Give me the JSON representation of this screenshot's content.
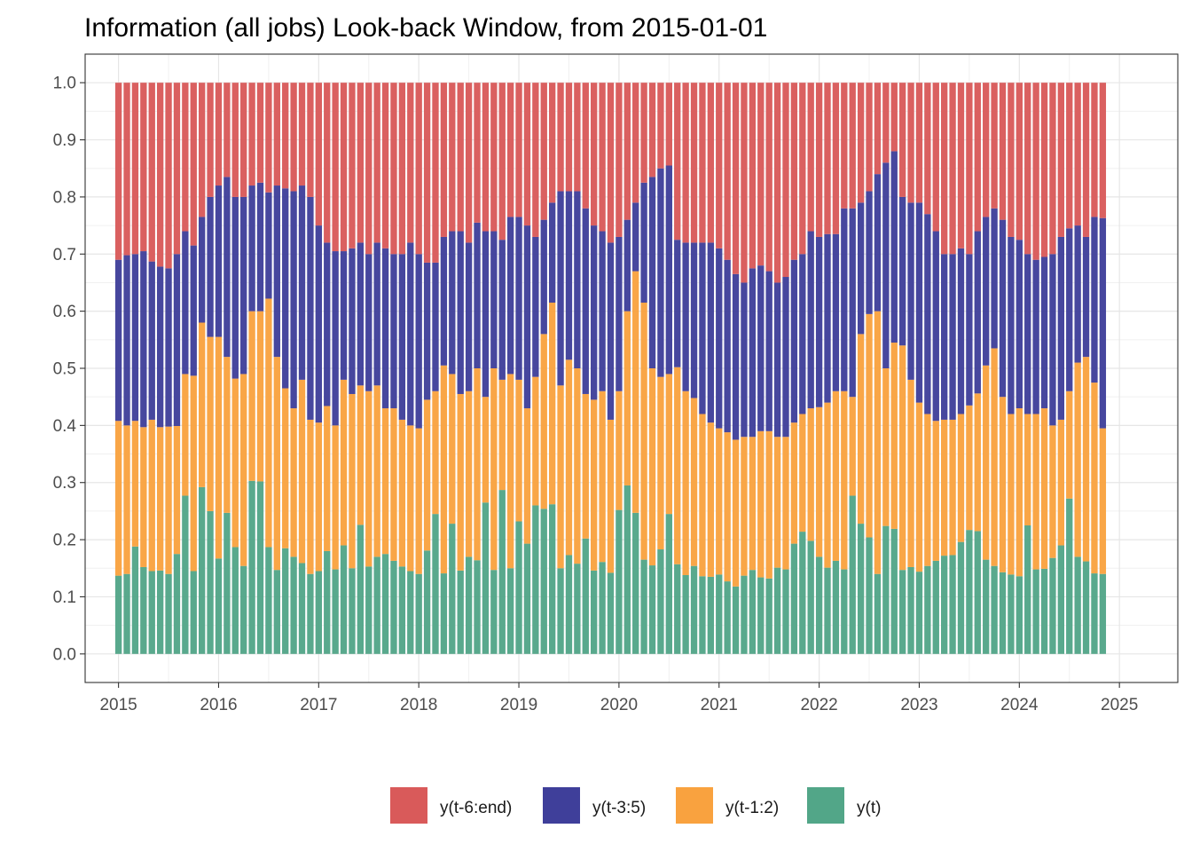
{
  "chart_data": {
    "type": "bar",
    "stacked": true,
    "title": "Information (all jobs) Look-back Window, from 2015-01-01",
    "xlabel": "",
    "ylabel": "",
    "x_start": "2015-01",
    "x_end": "2025-04",
    "x_unit": "month",
    "xlim": [
      "2014-09",
      "2025-08"
    ],
    "ylim": [
      -0.05,
      1.05
    ],
    "x_ticks": [
      "2015",
      "2016",
      "2017",
      "2018",
      "2019",
      "2020",
      "2021",
      "2022",
      "2023",
      "2024",
      "2025"
    ],
    "y_ticks": [
      "0.0",
      "0.1",
      "0.2",
      "0.3",
      "0.4",
      "0.5",
      "0.6",
      "0.7",
      "0.8",
      "0.9",
      "1.0"
    ],
    "grid": true,
    "legend_position": "bottom",
    "series": [
      {
        "name": "y(t)",
        "color": "#52a688",
        "cum_top": [
          0.137,
          0.14,
          0.188,
          0.152,
          0.145,
          0.146,
          0.14,
          0.175,
          0.277,
          0.145,
          0.292,
          0.25,
          0.167,
          0.247,
          0.187,
          0.154,
          0.303,
          0.302,
          0.187,
          0.147,
          0.185,
          0.17,
          0.159,
          0.14,
          0.145,
          0.18,
          0.148,
          0.19,
          0.15,
          0.226,
          0.153,
          0.17,
          0.175,
          0.163,
          0.153,
          0.145,
          0.14,
          0.181,
          0.245,
          0.141,
          0.228,
          0.146,
          0.17,
          0.164,
          0.265,
          0.147,
          0.287,
          0.15,
          0.232,
          0.193,
          0.26,
          0.254,
          0.262,
          0.15,
          0.173,
          0.158,
          0.202,
          0.146,
          0.161,
          0.142,
          0.252,
          0.295,
          0.247,
          0.165,
          0.155,
          0.183,
          0.245,
          0.157,
          0.138,
          0.154,
          0.136,
          0.135,
          0.139,
          0.127,
          0.118,
          0.137,
          0.147,
          0.134,
          0.132,
          0.151,
          0.148,
          0.193,
          0.214,
          0.198,
          0.17,
          0.151,
          0.163,
          0.148,
          0.277,
          0.228,
          0.204,
          0.14,
          0.224,
          0.219,
          0.147,
          0.152,
          0.144,
          0.154,
          0.163,
          0.172,
          0.173,
          0.196,
          0.217,
          0.215,
          0.165,
          0.154,
          0.143,
          0.139,
          0.136,
          0.225,
          0.148,
          0.149,
          0.168,
          0.19,
          0.272,
          0.17,
          0.162,
          0.141,
          0.14
        ],
        "values": [
          0.137,
          0.14,
          0.188,
          0.152,
          0.145,
          0.146,
          0.14,
          0.175,
          0.277,
          0.145,
          0.292,
          0.25,
          0.167,
          0.247,
          0.187,
          0.154,
          0.303,
          0.302,
          0.187,
          0.147,
          0.185,
          0.17,
          0.159,
          0.14,
          0.145,
          0.18,
          0.148,
          0.19,
          0.15,
          0.226,
          0.153,
          0.17,
          0.175,
          0.163,
          0.153,
          0.145,
          0.14,
          0.181,
          0.245,
          0.141,
          0.228,
          0.146,
          0.17,
          0.164,
          0.265,
          0.147,
          0.287,
          0.15,
          0.232,
          0.193,
          0.26,
          0.254,
          0.262,
          0.15,
          0.173,
          0.158,
          0.202,
          0.146,
          0.161,
          0.142,
          0.252,
          0.295,
          0.247,
          0.165,
          0.155,
          0.183,
          0.245,
          0.157,
          0.138,
          0.154,
          0.136,
          0.135,
          0.139,
          0.127,
          0.118,
          0.137,
          0.147,
          0.134,
          0.132,
          0.151,
          0.148,
          0.193,
          0.214,
          0.198,
          0.17,
          0.151,
          0.163,
          0.148,
          0.277,
          0.228,
          0.204,
          0.14,
          0.224,
          0.219,
          0.147,
          0.152,
          0.144,
          0.154,
          0.163,
          0.172,
          0.173,
          0.196,
          0.217,
          0.215,
          0.165,
          0.154,
          0.143,
          0.139,
          0.136,
          0.225,
          0.148,
          0.149,
          0.168,
          0.19,
          0.272,
          0.17,
          0.162,
          0.141,
          0.14
        ]
      },
      {
        "name": "y(t-1:2)",
        "color": "#f9a23f",
        "cum_top": [
          0.408,
          0.4,
          0.408,
          0.397,
          0.41,
          0.397,
          0.398,
          0.399,
          0.49,
          0.487,
          0.58,
          0.555,
          0.555,
          0.52,
          0.482,
          0.49,
          0.6,
          0.6,
          0.622,
          0.52,
          0.465,
          0.43,
          0.48,
          0.41,
          0.405,
          0.434,
          0.4,
          0.48,
          0.455,
          0.47,
          0.46,
          0.47,
          0.43,
          0.43,
          0.41,
          0.4,
          0.395,
          0.445,
          0.46,
          0.505,
          0.49,
          0.455,
          0.46,
          0.5,
          0.45,
          0.5,
          0.48,
          0.49,
          0.48,
          0.43,
          0.485,
          0.56,
          0.615,
          0.47,
          0.515,
          0.5,
          0.455,
          0.445,
          0.46,
          0.41,
          0.46,
          0.6,
          0.67,
          0.615,
          0.5,
          0.485,
          0.49,
          0.502,
          0.46,
          0.448,
          0.42,
          0.405,
          0.395,
          0.388,
          0.375,
          0.38,
          0.38,
          0.39,
          0.39,
          0.38,
          0.38,
          0.405,
          0.42,
          0.43,
          0.432,
          0.44,
          0.46,
          0.46,
          0.45,
          0.56,
          0.595,
          0.6,
          0.5,
          0.545,
          0.54,
          0.48,
          0.44,
          0.42,
          0.408,
          0.41,
          0.41,
          0.42,
          0.435,
          0.456,
          0.505,
          0.535,
          0.45,
          0.42,
          0.43,
          0.42,
          0.42,
          0.43,
          0.4,
          0.41,
          0.46,
          0.51,
          0.52,
          0.475,
          0.395
        ],
        "values": [
          0.271,
          0.26,
          0.22,
          0.245,
          0.265,
          0.251,
          0.258,
          0.224,
          0.213,
          0.342,
          0.288,
          0.305,
          0.388,
          0.273,
          0.295,
          0.336,
          0.297,
          0.298,
          0.435,
          0.373,
          0.28,
          0.26,
          0.321,
          0.27,
          0.26,
          0.254,
          0.252,
          0.29,
          0.305,
          0.244,
          0.307,
          0.3,
          0.255,
          0.267,
          0.257,
          0.255,
          0.255,
          0.264,
          0.215,
          0.364,
          0.262,
          0.309,
          0.29,
          0.336,
          0.185,
          0.353,
          0.193,
          0.34,
          0.248,
          0.237,
          0.225,
          0.306,
          0.353,
          0.32,
          0.342,
          0.342,
          0.253,
          0.299,
          0.299,
          0.268,
          0.208,
          0.305,
          0.423,
          0.45,
          0.345,
          0.302,
          0.245,
          0.345,
          0.322,
          0.294,
          0.284,
          0.27,
          0.256,
          0.261,
          0.257,
          0.243,
          0.233,
          0.256,
          0.258,
          0.229,
          0.232,
          0.212,
          0.206,
          0.232,
          0.262,
          0.289,
          0.297,
          0.312,
          0.173,
          0.332,
          0.391,
          0.46,
          0.276,
          0.326,
          0.393,
          0.328,
          0.296,
          0.266,
          0.245,
          0.238,
          0.237,
          0.224,
          0.218,
          0.241,
          0.34,
          0.381,
          0.307,
          0.281,
          0.294,
          0.195,
          0.272,
          0.281,
          0.232,
          0.22,
          0.188,
          0.34,
          0.358,
          0.334,
          0.255
        ]
      },
      {
        "name": "y(t-3:5)",
        "color": "#3f3f9a",
        "cum_top": [
          0.69,
          0.698,
          0.7,
          0.705,
          0.687,
          0.678,
          0.675,
          0.7,
          0.74,
          0.715,
          0.765,
          0.8,
          0.82,
          0.835,
          0.8,
          0.8,
          0.82,
          0.825,
          0.808,
          0.82,
          0.815,
          0.81,
          0.82,
          0.8,
          0.75,
          0.72,
          0.705,
          0.705,
          0.71,
          0.72,
          0.7,
          0.72,
          0.71,
          0.7,
          0.7,
          0.72,
          0.7,
          0.685,
          0.685,
          0.73,
          0.74,
          0.74,
          0.72,
          0.755,
          0.74,
          0.74,
          0.725,
          0.765,
          0.765,
          0.75,
          0.73,
          0.76,
          0.79,
          0.81,
          0.81,
          0.81,
          0.78,
          0.75,
          0.74,
          0.72,
          0.73,
          0.76,
          0.79,
          0.825,
          0.835,
          0.85,
          0.855,
          0.725,
          0.72,
          0.72,
          0.72,
          0.72,
          0.71,
          0.69,
          0.665,
          0.65,
          0.675,
          0.68,
          0.67,
          0.65,
          0.66,
          0.69,
          0.7,
          0.74,
          0.73,
          0.735,
          0.735,
          0.78,
          0.78,
          0.79,
          0.81,
          0.84,
          0.86,
          0.88,
          0.8,
          0.79,
          0.79,
          0.77,
          0.74,
          0.7,
          0.7,
          0.71,
          0.7,
          0.74,
          0.765,
          0.78,
          0.76,
          0.73,
          0.725,
          0.7,
          0.69,
          0.695,
          0.7,
          0.73,
          0.745,
          0.75,
          0.73,
          0.765,
          0.763
        ],
        "values": [
          0.282,
          0.298,
          0.292,
          0.308,
          0.277,
          0.281,
          0.277,
          0.301,
          0.25,
          0.228,
          0.185,
          0.245,
          0.265,
          0.315,
          0.318,
          0.31,
          0.22,
          0.225,
          0.186,
          0.3,
          0.35,
          0.38,
          0.34,
          0.39,
          0.345,
          0.286,
          0.305,
          0.225,
          0.255,
          0.25,
          0.24,
          0.25,
          0.28,
          0.27,
          0.29,
          0.32,
          0.305,
          0.24,
          0.225,
          0.225,
          0.25,
          0.285,
          0.26,
          0.255,
          0.29,
          0.24,
          0.245,
          0.275,
          0.285,
          0.32,
          0.245,
          0.2,
          0.175,
          0.34,
          0.295,
          0.31,
          0.325,
          0.305,
          0.28,
          0.31,
          0.27,
          0.16,
          0.12,
          0.21,
          0.335,
          0.365,
          0.365,
          0.223,
          0.26,
          0.272,
          0.3,
          0.315,
          0.315,
          0.302,
          0.29,
          0.27,
          0.295,
          0.29,
          0.28,
          0.27,
          0.28,
          0.285,
          0.28,
          0.31,
          0.298,
          0.295,
          0.275,
          0.32,
          0.33,
          0.23,
          0.215,
          0.24,
          0.36,
          0.335,
          0.26,
          0.31,
          0.35,
          0.35,
          0.332,
          0.29,
          0.29,
          0.29,
          0.265,
          0.284,
          0.26,
          0.245,
          0.31,
          0.31,
          0.295,
          0.28,
          0.27,
          0.265,
          0.3,
          0.32,
          0.285,
          0.24,
          0.21,
          0.29,
          0.368
        ]
      },
      {
        "name": "y(t-6:end)",
        "color": "#d95a5a",
        "cum_top": [
          1,
          1,
          1,
          1,
          1,
          1,
          1,
          1,
          1,
          1,
          1,
          1,
          1,
          1,
          1,
          1,
          1,
          1,
          1,
          1,
          1,
          1,
          1,
          1,
          1,
          1,
          1,
          1,
          1,
          1,
          1,
          1,
          1,
          1,
          1,
          1,
          1,
          1,
          1,
          1,
          1,
          1,
          1,
          1,
          1,
          1,
          1,
          1,
          1,
          1,
          1,
          1,
          1,
          1,
          1,
          1,
          1,
          1,
          1,
          1,
          1,
          1,
          1,
          1,
          1,
          1,
          1,
          1,
          1,
          1,
          1,
          1,
          1,
          1,
          1,
          1,
          1,
          1,
          1,
          1,
          1,
          1,
          1,
          1,
          1,
          1,
          1,
          1,
          1,
          1,
          1,
          1,
          1,
          1,
          1,
          1,
          1,
          1,
          1,
          1,
          1,
          1,
          1,
          1,
          1,
          1,
          1,
          1,
          1,
          1,
          1,
          1,
          1,
          1,
          1,
          1,
          1,
          1,
          1
        ],
        "values": [
          0.31,
          0.302,
          0.3,
          0.295,
          0.313,
          0.322,
          0.325,
          0.3,
          0.26,
          0.285,
          0.235,
          0.2,
          0.18,
          0.165,
          0.2,
          0.2,
          0.18,
          0.175,
          0.192,
          0.18,
          0.185,
          0.19,
          0.18,
          0.2,
          0.25,
          0.28,
          0.295,
          0.295,
          0.29,
          0.28,
          0.3,
          0.28,
          0.29,
          0.3,
          0.3,
          0.28,
          0.3,
          0.315,
          0.315,
          0.27,
          0.26,
          0.26,
          0.28,
          0.245,
          0.26,
          0.26,
          0.275,
          0.235,
          0.235,
          0.25,
          0.27,
          0.24,
          0.21,
          0.19,
          0.19,
          0.19,
          0.22,
          0.25,
          0.26,
          0.28,
          0.27,
          0.24,
          0.21,
          0.175,
          0.165,
          0.15,
          0.145,
          0.275,
          0.28,
          0.28,
          0.28,
          0.28,
          0.29,
          0.31,
          0.335,
          0.35,
          0.325,
          0.32,
          0.33,
          0.35,
          0.34,
          0.31,
          0.3,
          0.26,
          0.27,
          0.265,
          0.265,
          0.22,
          0.22,
          0.21,
          0.19,
          0.16,
          0.14,
          0.12,
          0.2,
          0.21,
          0.21,
          0.23,
          0.26,
          0.3,
          0.3,
          0.29,
          0.3,
          0.26,
          0.235,
          0.22,
          0.24,
          0.27,
          0.275,
          0.3,
          0.31,
          0.305,
          0.3,
          0.27,
          0.255,
          0.25,
          0.27,
          0.235,
          0.237
        ]
      }
    ]
  }
}
